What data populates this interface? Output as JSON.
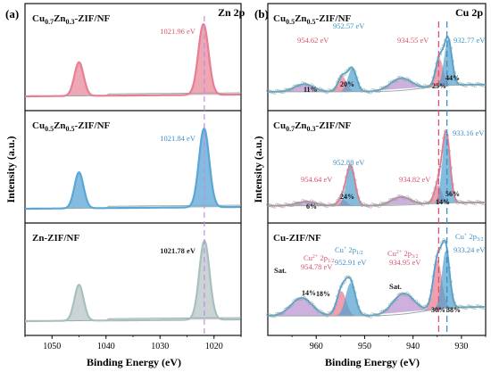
{
  "figure": {
    "panel_a_letter": "(a)",
    "panel_b_letter": "(b)",
    "ylabel": "Intensity (a.u.)"
  },
  "chart_data": [
    {
      "panel": "(a)",
      "type": "line",
      "title": "Zn 2p",
      "xlabel": "Binding Energy (eV)",
      "ylabel": "Intensity (a.u.)",
      "xlim": [
        1055,
        1015
      ],
      "xticks": [
        "1050",
        "1040",
        "1030",
        "1020"
      ],
      "reference_line_ev": 1021.8,
      "subplots": [
        {
          "label_html": "Cu<tspan font-size='9' dy='3'>0.7</tspan><tspan dy='-3'>Zn</tspan><tspan font-size='9' dy='3'>0.3</tspan><tspan dy='-3'>-ZIF/NF</tspan>",
          "label_text": "Cu0.7Zn0.3-ZIF/NF",
          "peak_label": "1021.96 eV",
          "peak_color": "#d9536f",
          "fill_color": "#e88a9c",
          "line_color": "#e87e92",
          "peaks": [
            {
              "center": 1045.0,
              "height": 0.42,
              "width": 0.85
            },
            {
              "center": 1021.96,
              "height": 0.88,
              "width": 0.95
            }
          ]
        },
        {
          "label_text": "Cu0.5Zn0.5-ZIF/NF",
          "peak_label": "1021.84 eV",
          "peak_color": "#3d8fc4",
          "fill_color": "#5aa6d6",
          "line_color": "#5aa6d6",
          "peaks": [
            {
              "center": 1045.0,
              "height": 0.42,
              "width": 0.85
            },
            {
              "center": 1021.84,
              "height": 0.92,
              "width": 0.95
            }
          ]
        },
        {
          "label_text": "Zn-ZIF/NF",
          "peak_label": "1021.78 eV",
          "peak_color": "#222222",
          "fill_color": "#b8c6c6",
          "line_color": "#a9bfbf",
          "peaks": [
            {
              "center": 1045.0,
              "height": 0.42,
              "width": 0.85
            },
            {
              "center": 1021.78,
              "height": 0.92,
              "width": 0.95
            }
          ]
        }
      ]
    },
    {
      "panel": "(b)",
      "type": "line",
      "title": "Cu 2p",
      "xlabel": "Binding Energy (eV)",
      "ylabel": "Intensity (a.u.)",
      "xlim": [
        970,
        925
      ],
      "xticks": [
        "960",
        "950",
        "940",
        "930"
      ],
      "reference_lines_ev": [
        {
          "x": 934.7,
          "color": "#d9536f"
        },
        {
          "x": 933.0,
          "color": "#3d8fc4"
        }
      ],
      "subplots": [
        {
          "label_text": "Cu0.5Zn0.5-ZIF/NF",
          "annotations": [
            {
              "text": "954.62 eV",
              "color": "#d9536f"
            },
            {
              "text": "952.57 eV",
              "color": "#3d8fc4"
            },
            {
              "text": "934.55 eV",
              "color": "#d9536f"
            },
            {
              "text": "932.77 eV",
              "color": "#3d8fc4"
            },
            {
              "text": "11%",
              "color": "#111"
            },
            {
              "text": "20%",
              "color": "#111"
            },
            {
              "text": "25%",
              "color": "#111"
            },
            {
              "text": "44%",
              "color": "#111"
            }
          ]
        },
        {
          "label_text": "Cu0.7Zn0.3-ZIF/NF",
          "annotations": [
            {
              "text": "933.16 eV",
              "color": "#3d8fc4"
            },
            {
              "text": "952.88 eV",
              "color": "#3d8fc4"
            },
            {
              "text": "954.64 eV",
              "color": "#d9536f"
            },
            {
              "text": "934.82 eV",
              "color": "#d9536f"
            },
            {
              "text": "24%",
              "color": "#111"
            },
            {
              "text": "6%",
              "color": "#111"
            },
            {
              "text": "14%",
              "color": "#111"
            },
            {
              "text": "56%",
              "color": "#111"
            }
          ]
        },
        {
          "label_text": "Cu-ZIF/NF",
          "annotations": [
            {
              "text": "Sat.",
              "color": "#111"
            },
            {
              "text": "954.78 eV",
              "color": "#d9536f"
            },
            {
              "text": "952.91 eV",
              "color": "#3d8fc4"
            },
            {
              "text": "Sat.",
              "color": "#111"
            },
            {
              "text": "934.95 eV",
              "color": "#d9536f"
            },
            {
              "text": "933.24 eV",
              "color": "#3d8fc4"
            },
            {
              "text": "14%",
              "color": "#111"
            },
            {
              "text": "18%",
              "color": "#111"
            },
            {
              "text": "30%",
              "color": "#111"
            },
            {
              "text": "38%",
              "color": "#111"
            }
          ],
          "species_labels": [
            {
              "main": "Cu",
              "sup": "2+",
              "mid": " 2p",
              "sub": "1/2",
              "color": "#d9536f"
            },
            {
              "main": "Cu",
              "sup": "+",
              "mid": " 2p",
              "sub": "1/2",
              "color": "#3d8fc4"
            },
            {
              "main": "Cu",
              "sup": "2+",
              "mid": " 2p",
              "sub": "3/2",
              "color": "#d9536f"
            },
            {
              "main": "Cu",
              "sup": "+",
              "mid": " 2p",
              "sub": "3/2",
              "color": "#3d8fc4"
            }
          ]
        }
      ]
    }
  ]
}
